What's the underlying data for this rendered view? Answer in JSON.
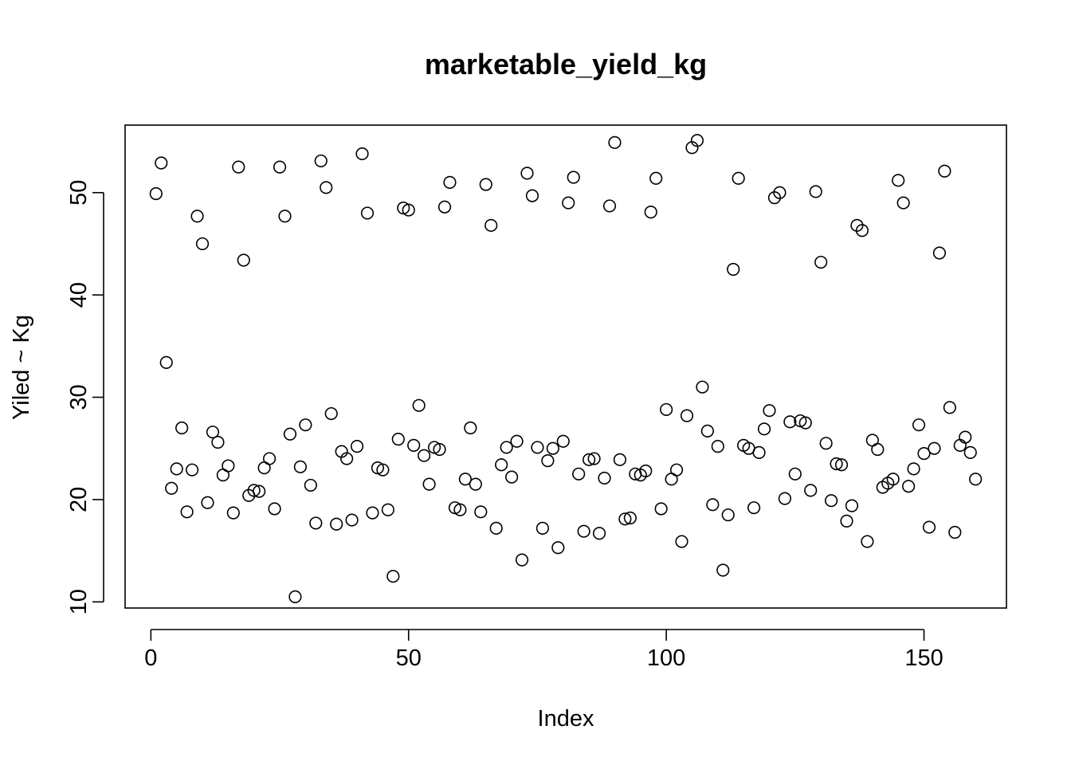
{
  "chart_data": {
    "type": "scatter",
    "title": "marketable_yield_kg",
    "xlabel": "Index",
    "ylabel": "Yiled ~ Kg",
    "xlim": [
      -5,
      166
    ],
    "ylim": [
      9.4,
      56.6
    ],
    "xticks": [
      0,
      50,
      100,
      150
    ],
    "yticks": [
      10,
      20,
      30,
      40,
      50
    ],
    "grid": false,
    "legend": "none",
    "point_color": "#000000",
    "y": [
      49.9,
      52.9,
      33.4,
      21.1,
      23.0,
      27.0,
      18.8,
      22.9,
      47.7,
      45.0,
      19.7,
      26.6,
      25.6,
      22.4,
      23.3,
      18.7,
      52.5,
      43.4,
      20.4,
      20.9,
      20.8,
      23.1,
      24.0,
      19.1,
      52.5,
      47.7,
      26.4,
      10.5,
      23.2,
      27.3,
      21.4,
      17.7,
      53.1,
      50.5,
      28.4,
      17.6,
      24.7,
      24.0,
      18.0,
      25.2,
      53.8,
      48.0,
      18.7,
      23.1,
      22.9,
      19.0,
      12.5,
      25.9,
      48.5,
      48.3,
      25.3,
      29.2,
      24.3,
      21.5,
      25.1,
      24.9,
      48.6,
      51.0,
      19.2,
      19.0,
      22.0,
      27.0,
      21.5,
      18.8,
      50.8,
      46.8,
      17.2,
      23.4,
      25.1,
      22.2,
      25.7,
      14.1,
      51.9,
      49.7,
      25.1,
      17.2,
      23.8,
      25.0,
      15.3,
      25.7,
      49.0,
      51.5,
      22.5,
      16.9,
      23.9,
      24.0,
      16.7,
      22.1,
      48.7,
      54.9,
      23.9,
      18.1,
      18.2,
      22.5,
      22.4,
      22.8,
      48.1,
      51.4,
      19.1,
      28.8,
      22.0,
      22.9,
      15.9,
      28.2,
      54.4,
      55.1,
      31.0,
      26.7,
      19.5,
      25.2,
      13.1,
      18.5,
      42.5,
      51.4,
      25.3,
      25.0,
      19.2,
      24.6,
      26.9,
      28.7,
      49.5,
      50.0,
      20.1,
      27.6,
      22.5,
      27.7,
      27.5,
      20.9,
      50.1,
      43.2,
      25.5,
      19.9,
      23.5,
      23.4,
      17.9,
      19.4,
      46.8,
      46.3,
      15.9,
      25.8,
      24.9,
      21.2,
      21.6,
      22.0,
      51.2,
      49.0,
      21.3,
      23.0,
      27.3,
      24.5,
      17.3,
      25.0,
      44.1,
      52.1,
      29.0,
      16.8,
      25.3,
      26.1,
      24.6,
      22.0
    ]
  }
}
